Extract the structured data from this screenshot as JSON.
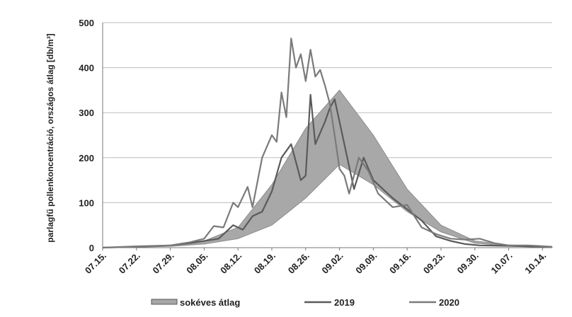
{
  "chart_data": {
    "type": "line",
    "title": "",
    "ylabel": "parlagfű pollenkoncentráció, országos átlag [db/m³]",
    "xlabel": "",
    "ylim": [
      0,
      500
    ],
    "yticks": [
      0,
      100,
      200,
      300,
      400,
      500
    ],
    "grid": true,
    "legend_position": "bottom",
    "x_tick_labels": [
      "07.15.",
      "07.22.",
      "07.29.",
      "08.05.",
      "08.12.",
      "08.19.",
      "08.26.",
      "09.02.",
      "09.09.",
      "09.16.",
      "09.23.",
      "09.30.",
      "10.07.",
      "10.14."
    ],
    "band": {
      "name": "sokéves átlag",
      "color": "#a8a8a8",
      "x": [
        0,
        7,
        14,
        21,
        28,
        35,
        42,
        49,
        56,
        63,
        70,
        77,
        84,
        91,
        93
      ],
      "lower": [
        0,
        1,
        3,
        8,
        20,
        50,
        110,
        185,
        140,
        80,
        35,
        10,
        4,
        1,
        0
      ],
      "upper": [
        1,
        2,
        5,
        15,
        45,
        140,
        265,
        350,
        250,
        130,
        50,
        15,
        6,
        2,
        1
      ]
    },
    "series": [
      {
        "name": "2019",
        "color": "#5a5a5a",
        "x": [
          0,
          7,
          14,
          18,
          21,
          24,
          27,
          29,
          31,
          33,
          35,
          37,
          39,
          41,
          42,
          43,
          44,
          46,
          47,
          48,
          50,
          52,
          54,
          56,
          58,
          60,
          63,
          66,
          69,
          72,
          75,
          78,
          84,
          91,
          93
        ],
        "values": [
          0,
          2,
          5,
          10,
          15,
          20,
          50,
          40,
          70,
          80,
          125,
          200,
          230,
          150,
          160,
          340,
          230,
          280,
          310,
          330,
          230,
          130,
          200,
          150,
          130,
          110,
          85,
          60,
          25,
          15,
          8,
          5,
          4,
          2,
          1
        ]
      },
      {
        "name": "2020",
        "color": "#7a7a7a",
        "x": [
          0,
          7,
          14,
          18,
          21,
          23,
          25,
          27,
          28,
          30,
          31,
          33,
          35,
          36,
          37,
          38,
          39,
          40,
          41,
          42,
          43,
          44,
          45,
          46,
          47,
          48,
          49,
          50,
          51,
          53,
          55,
          57,
          60,
          63,
          66,
          69,
          72,
          75,
          78,
          81,
          84,
          88,
          93
        ],
        "values": [
          0,
          3,
          5,
          12,
          20,
          48,
          45,
          100,
          90,
          135,
          90,
          200,
          250,
          235,
          345,
          290,
          465,
          400,
          430,
          370,
          440,
          380,
          395,
          360,
          320,
          250,
          175,
          160,
          120,
          200,
          170,
          120,
          90,
          95,
          45,
          30,
          20,
          18,
          20,
          10,
          5,
          5,
          2
        ]
      }
    ]
  }
}
